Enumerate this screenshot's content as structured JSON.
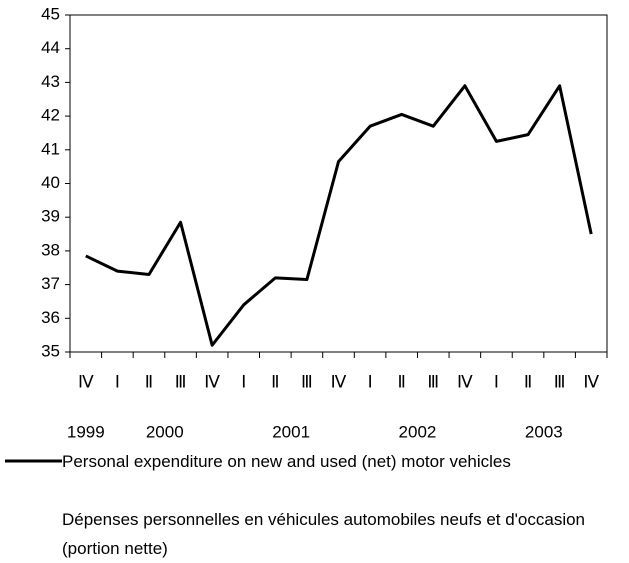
{
  "chart_data": {
    "type": "line",
    "categories": [
      "Ⅳ",
      "Ⅰ",
      "Ⅱ",
      "Ⅲ",
      "Ⅳ",
      "Ⅰ",
      "Ⅱ",
      "Ⅲ",
      "Ⅳ",
      "Ⅰ",
      "Ⅱ",
      "Ⅲ",
      "Ⅳ",
      "Ⅰ",
      "Ⅱ",
      "Ⅲ",
      "Ⅳ"
    ],
    "years": [
      "1999",
      "2000",
      "2001",
      "2002",
      "2003"
    ],
    "series": [
      {
        "name": "Personal expenditure on new and used (net) motor vehicles",
        "name_fr": "Dépenses personnelles en véhicules automobiles neufs et d'occasion (portion nette)",
        "color": "#000000",
        "values": [
          37.85,
          37.4,
          37.3,
          38.85,
          35.2,
          36.4,
          37.2,
          37.15,
          40.65,
          41.7,
          42.05,
          41.7,
          42.9,
          41.25,
          41.45,
          42.9,
          38.5
        ]
      }
    ],
    "ylim": [
      35,
      45
    ],
    "yticks": [
      35,
      36,
      37,
      38,
      39,
      40,
      41,
      42,
      43,
      44,
      45
    ],
    "grid": false
  }
}
